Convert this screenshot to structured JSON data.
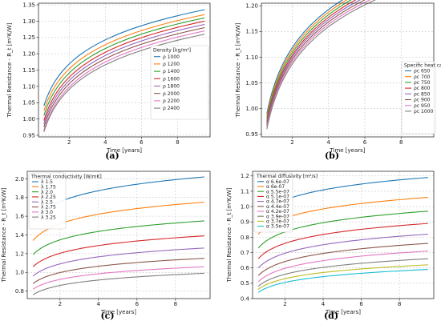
{
  "figure": {
    "panels": [
      {
        "caption": "(a)",
        "chart_data": {
          "type": "line",
          "xlabel": "Time [years]",
          "ylabel": "Thermal Resistance - R_t [m²K/W]",
          "xlim": [
            0.3,
            9.8
          ],
          "ylim": [
            0.945,
            1.355
          ],
          "xticks": [
            2,
            4,
            6,
            8
          ],
          "xtick_labels": [
            "2",
            "4",
            "6",
            "8"
          ],
          "yticks": [
            0.95,
            1.0,
            1.05,
            1.1,
            1.15,
            1.2,
            1.25,
            1.3,
            1.35
          ],
          "ytick_labels": [
            "0.95",
            "1.00",
            "1.05",
            "1.10",
            "1.15",
            "1.20",
            "1.25",
            "1.30",
            "1.35"
          ],
          "grid": true,
          "legend": {
            "title": "Density [kg/m³]",
            "placement": "right-center"
          },
          "x_range": [
            0.6,
            9.5
          ],
          "series": [
            {
              "name": "ρ 1000",
              "color": "#1f77b4",
              "start": 1.04,
              "end": 1.335
            },
            {
              "name": "ρ 1200",
              "color": "#ff7f0e",
              "start": 1.025,
              "end": 1.32
            },
            {
              "name": "ρ 1400",
              "color": "#2ca02c",
              "start": 1.01,
              "end": 1.31
            },
            {
              "name": "ρ 1600",
              "color": "#d62728",
              "start": 0.995,
              "end": 1.3
            },
            {
              "name": "ρ 1800",
              "color": "#9467bd",
              "start": 0.985,
              "end": 1.29
            },
            {
              "name": "ρ 2000",
              "color": "#8c564b",
              "start": 0.975,
              "end": 1.28
            },
            {
              "name": "ρ 2200",
              "color": "#e377c2",
              "start": 0.965,
              "end": 1.27
            },
            {
              "name": "ρ 2400",
              "color": "#7f7f7f",
              "start": 0.96,
              "end": 1.26
            }
          ]
        }
      },
      {
        "caption": "(b)",
        "chart_data": {
          "type": "line",
          "xlabel": "Time [years]",
          "ylabel": "Thermal Resistance - R_t [m²K/W]",
          "xlim": [
            0.3,
            9.8
          ],
          "ylim": [
            0.945,
            1.205
          ],
          "xticks": [
            2,
            4,
            6,
            8
          ],
          "xtick_labels": [
            "2",
            "4",
            "6",
            "8"
          ],
          "yticks": [
            0.95,
            1.0,
            1.05,
            1.1,
            1.15,
            1.2
          ],
          "ytick_labels": [
            "0.95",
            "1.00",
            "1.05",
            "1.10",
            "1.15",
            "1.20"
          ],
          "grid": true,
          "legend": {
            "title": "Specific heat capacity [J/kgK]",
            "placement": "right-bottom"
          },
          "x_range": [
            0.6,
            9.5
          ],
          "series": [
            {
              "name": "ρc 650",
              "color": "#1f77b4",
              "start": 0.99,
              "end": 1.285
            },
            {
              "name": "ρc 700",
              "color": "#ff7f0e",
              "start": 0.985,
              "end": 1.28
            },
            {
              "name": "ρc 750",
              "color": "#2ca02c",
              "start": 0.98,
              "end": 1.275
            },
            {
              "name": "ρc 800",
              "color": "#d62728",
              "start": 0.975,
              "end": 1.27
            },
            {
              "name": "ρc 850",
              "color": "#9467bd",
              "start": 0.972,
              "end": 1.265
            },
            {
              "name": "ρc 900",
              "color": "#8c564b",
              "start": 0.968,
              "end": 1.26
            },
            {
              "name": "ρc 950",
              "color": "#e377c2",
              "start": 0.964,
              "end": 1.255
            },
            {
              "name": "ρc 1000",
              "color": "#7f7f7f",
              "start": 0.96,
              "end": 1.25
            }
          ]
        }
      },
      {
        "caption": "(c)",
        "chart_data": {
          "type": "line",
          "xlabel": "Time [years]",
          "ylabel": "Thermal Resistance - R_t [m²K/W]",
          "xlim": [
            0.3,
            9.8
          ],
          "ylim": [
            0.72,
            2.08
          ],
          "xticks": [
            2,
            4,
            6,
            8
          ],
          "xtick_labels": [
            "2",
            "4",
            "6",
            "8"
          ],
          "yticks": [
            0.8,
            1.0,
            1.2,
            1.4,
            1.6,
            1.8,
            2.0
          ],
          "ytick_labels": [
            "0.8",
            "1.0",
            "1.2",
            "1.4",
            "1.6",
            "1.8",
            "2.0"
          ],
          "grid": true,
          "legend": {
            "title": "Thermal conductivity [W/mK]",
            "placement": "top-left"
          },
          "x_range": [
            0.6,
            9.5
          ],
          "series": [
            {
              "name": "λ 1.5",
              "color": "#1f77b4",
              "start": 1.55,
              "end": 2.02
            },
            {
              "name": "λ 1.75",
              "color": "#ff7f0e",
              "start": 1.34,
              "end": 1.75
            },
            {
              "name": "λ 2.0",
              "color": "#2ca02c",
              "start": 1.19,
              "end": 1.55
            },
            {
              "name": "λ 2.25",
              "color": "#d62728",
              "start": 1.06,
              "end": 1.39
            },
            {
              "name": "λ 2.5",
              "color": "#9467bd",
              "start": 0.96,
              "end": 1.26
            },
            {
              "name": "λ 2.75",
              "color": "#8c564b",
              "start": 0.88,
              "end": 1.15
            },
            {
              "name": "λ 3.0",
              "color": "#e377c2",
              "start": 0.82,
              "end": 1.06
            },
            {
              "name": "λ 3.25",
              "color": "#7f7f7f",
              "start": 0.76,
              "end": 0.99
            }
          ]
        }
      },
      {
        "caption": "(d)",
        "chart_data": {
          "type": "line",
          "xlabel": "Time [years]",
          "ylabel": "Thermal Resistance - R_t [m²K/W]",
          "xlim": [
            0.3,
            9.8
          ],
          "ylim": [
            0.4,
            1.23
          ],
          "xticks": [
            2,
            4,
            6,
            8
          ],
          "xtick_labels": [
            "2",
            "4",
            "6",
            "8"
          ],
          "yticks": [
            0.4,
            0.5,
            0.6,
            0.7,
            0.8,
            0.9,
            1.0,
            1.1,
            1.2
          ],
          "ytick_labels": [
            "0.4",
            "0.5",
            "0.6",
            "0.7",
            "0.8",
            "0.9",
            "1.0",
            "1.1",
            "1.2"
          ],
          "grid": true,
          "legend": {
            "title": "Thermal diffusivity [m²/s]",
            "placement": "top-left"
          },
          "x_range": [
            0.6,
            9.5
          ],
          "series": [
            {
              "name": "α 6.6e-07",
              "color": "#1f77b4",
              "start": 0.93,
              "end": 1.19
            },
            {
              "name": "α 6e-07",
              "color": "#ff7f0e",
              "start": 0.82,
              "end": 1.06
            },
            {
              "name": "α 5.5e-07",
              "color": "#2ca02c",
              "start": 0.73,
              "end": 0.97
            },
            {
              "name": "α 5.1e-07",
              "color": "#d62728",
              "start": 0.66,
              "end": 0.89
            },
            {
              "name": "α 4.7e-07",
              "color": "#9467bd",
              "start": 0.6,
              "end": 0.82
            },
            {
              "name": "α 4.4e-07",
              "color": "#8c564b",
              "start": 0.55,
              "end": 0.76
            },
            {
              "name": "α 4.2e-07",
              "color": "#e377c2",
              "start": 0.51,
              "end": 0.71
            },
            {
              "name": "α 3.9e-07",
              "color": "#7f7f7f",
              "start": 0.48,
              "end": 0.66
            },
            {
              "name": "α 3.7e-07",
              "color": "#bcbd22",
              "start": 0.46,
              "end": 0.62
            },
            {
              "name": "α 3.5e-07",
              "color": "#17becf",
              "start": 0.44,
              "end": 0.59
            }
          ]
        }
      }
    ]
  }
}
